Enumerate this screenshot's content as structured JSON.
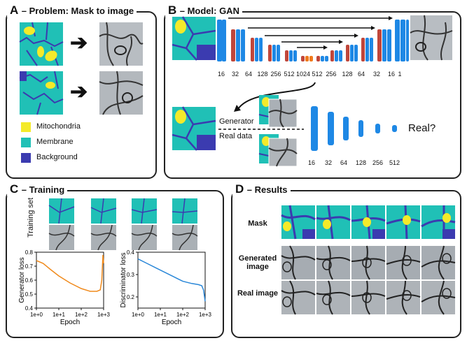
{
  "panels": {
    "a": {
      "letter": "A",
      "title": "– Problem: Mask to image"
    },
    "b": {
      "letter": "B",
      "title": "– Model: GAN"
    },
    "c": {
      "letter": "C",
      "title": "– Training"
    },
    "d": {
      "letter": "D",
      "title": "– Results"
    }
  },
  "legend": [
    {
      "label": "Mitochondria",
      "color": "#f4ea2a"
    },
    {
      "label": "Membrane",
      "color": "#20c0b6"
    },
    {
      "label": "Background",
      "color": "#3b3bb0"
    }
  ],
  "unet_channels": [
    "16",
    "32",
    "64",
    "128",
    "256",
    "512",
    "1024",
    "512",
    "256",
    "128",
    "64",
    "32",
    "16",
    "1"
  ],
  "discriminator_channels": [
    "16",
    "32",
    "64",
    "128",
    "256",
    "512"
  ],
  "generator_label": "Generator",
  "realdata_label": "Real data",
  "real_question": "Real?",
  "training_set_label": "Training set",
  "plots": {
    "generator": {
      "ylabel": "Generator loss",
      "xlabel": "Epoch",
      "yticks": [
        "0.4",
        "0.5",
        "0.6",
        "0.7",
        "0.8"
      ],
      "xticks": [
        "1e+0",
        "1e+1",
        "1e+2",
        "1e+3"
      ],
      "color": "#f08a1c"
    },
    "discriminator": {
      "ylabel": "Discriminator loss",
      "xlabel": "Epoch",
      "yticks": [
        "0.2",
        "0.3",
        "0.4"
      ],
      "xticks": [
        "1e+0",
        "1e+1",
        "1e+2",
        "1e+3"
      ],
      "color": "#2a87d8"
    }
  },
  "results_rows": {
    "mask": "Mask",
    "generated": "Generated image",
    "real": "Real image"
  },
  "colors": {
    "teal": "#20c0b6",
    "yellow": "#f4ea2a",
    "purple": "#3b3bb0",
    "blue": "#1e88e5",
    "red": "#c0463a",
    "orange": "#f07a1c"
  }
}
